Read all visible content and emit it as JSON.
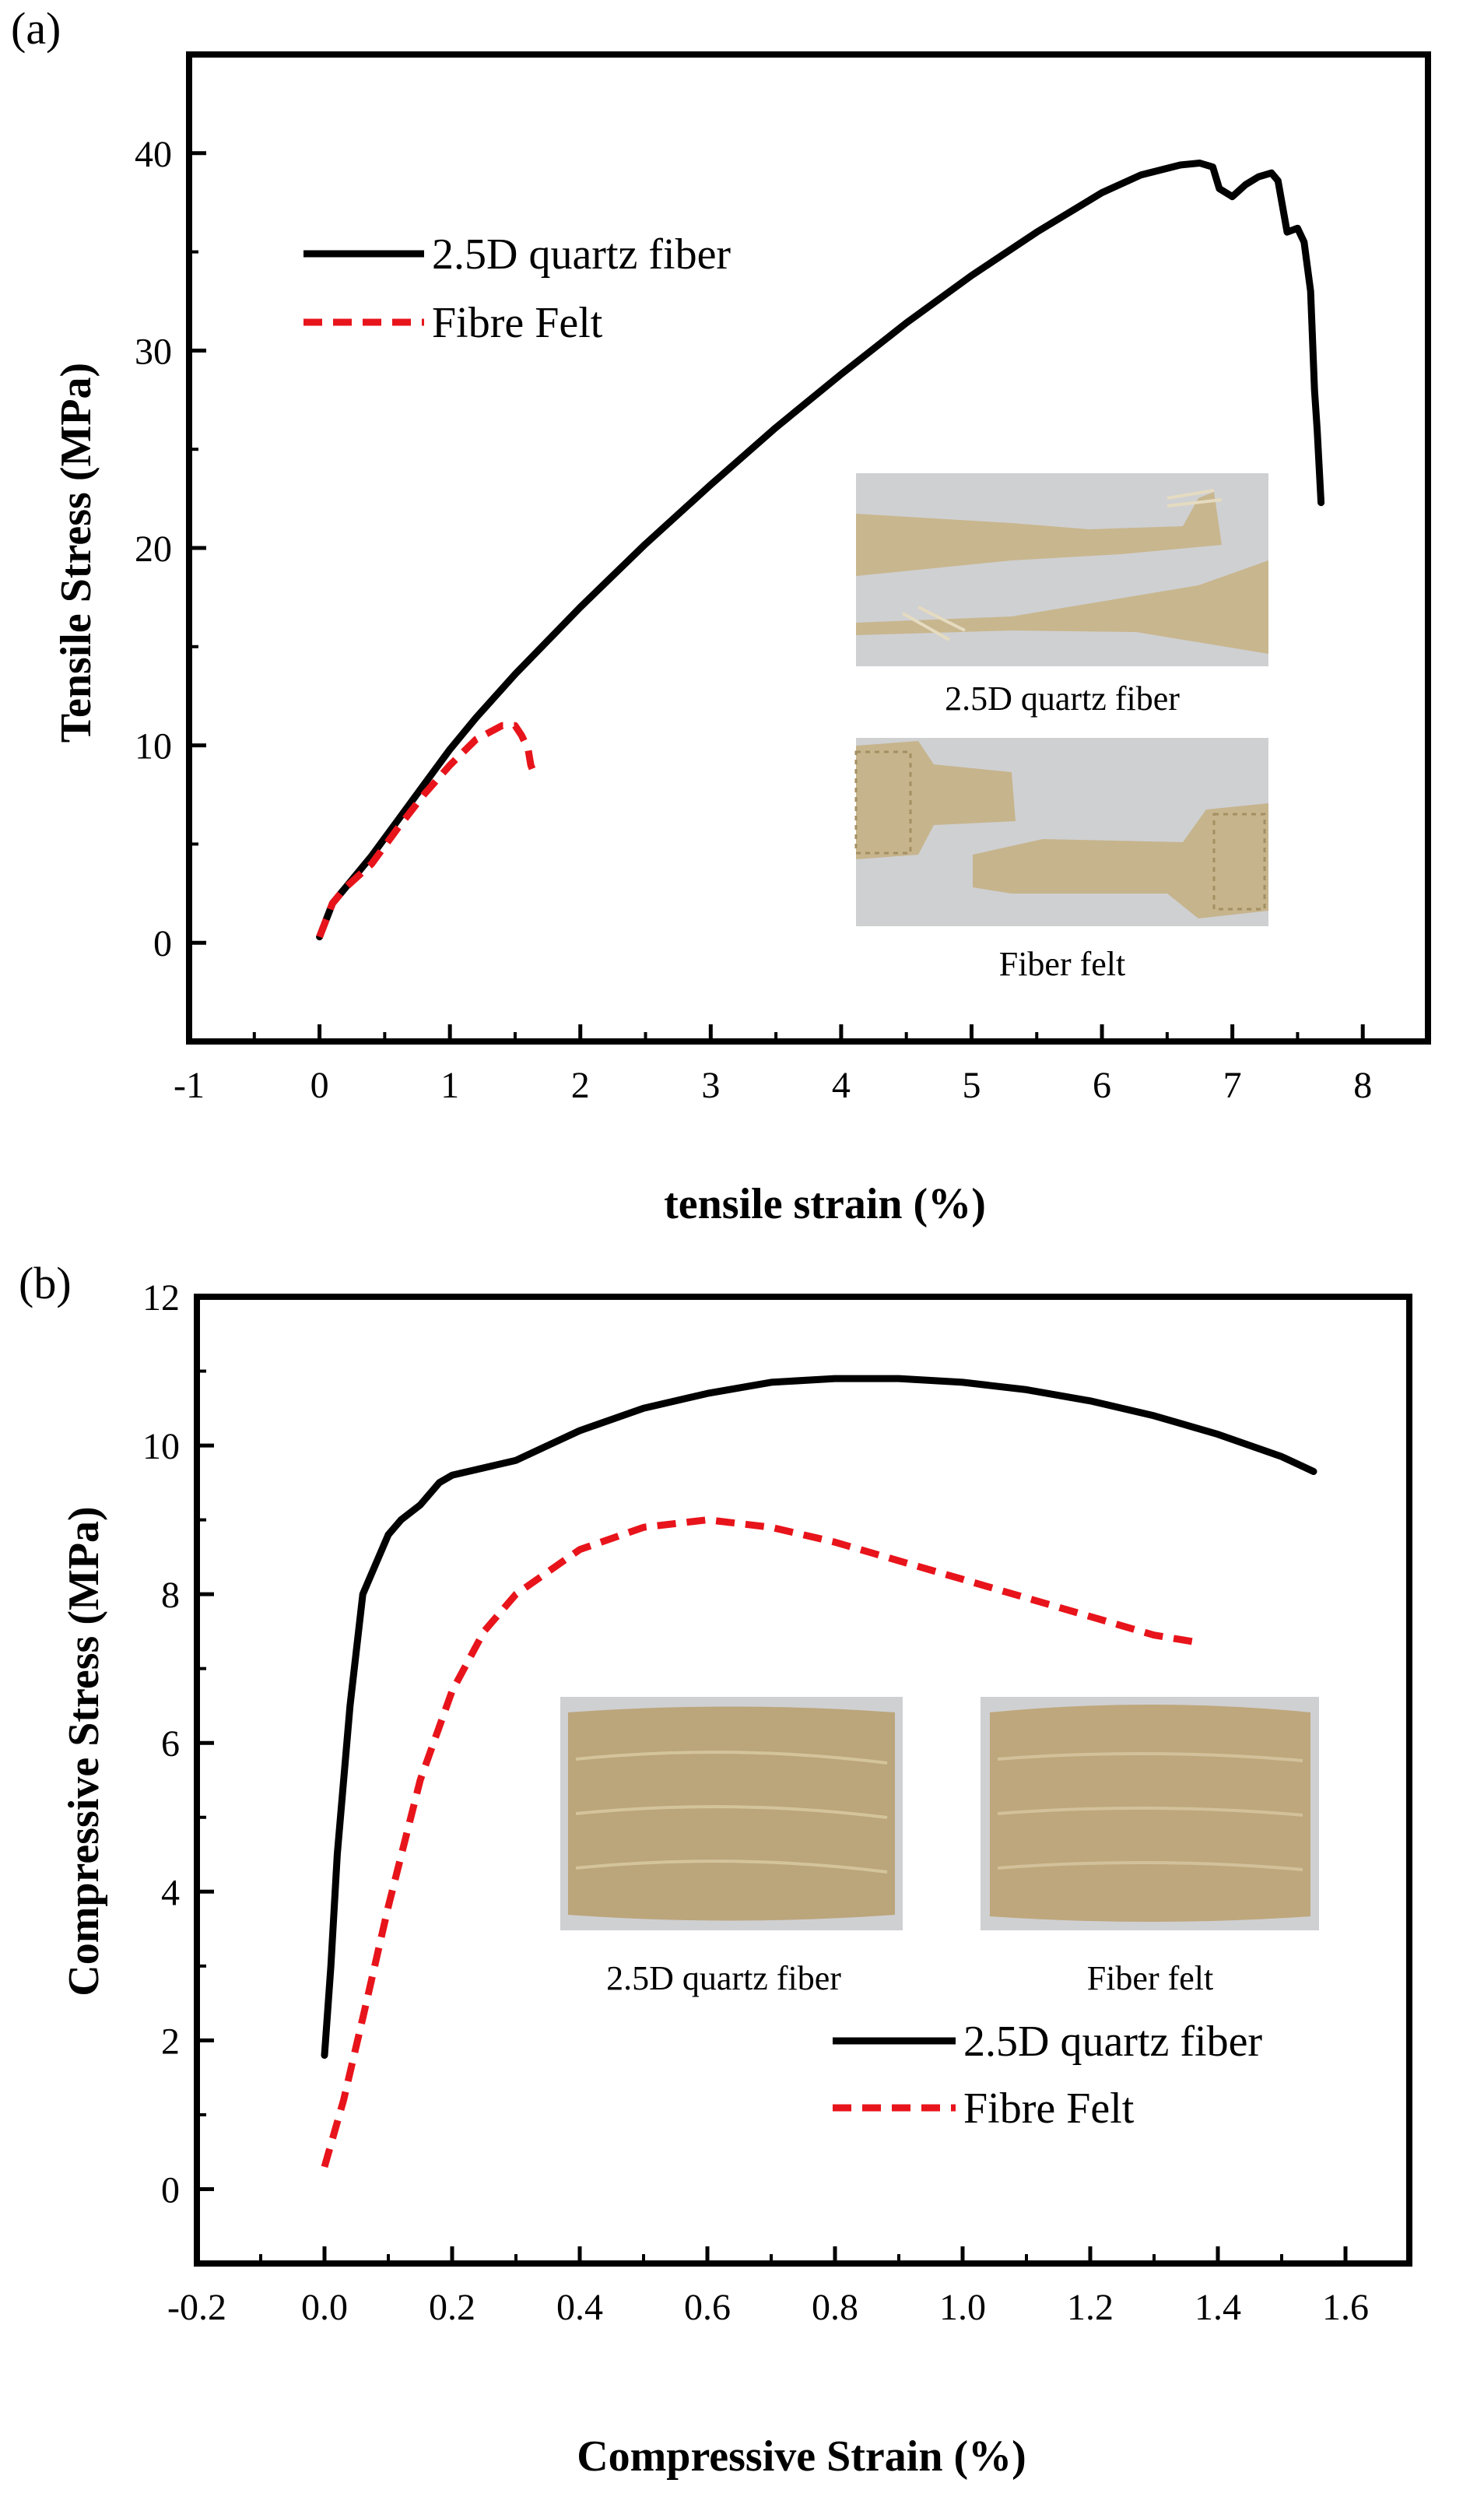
{
  "colors": {
    "series_solid": "#000000",
    "series_dashed": "#e8141b",
    "photo_bg": "#cfd0d2",
    "photo_sample": "#c6b48c",
    "photo_cyl": "#bba57b"
  },
  "chart_data": [
    {
      "panel": "(a)",
      "type": "line",
      "xlabel": "tensile strain (%)",
      "ylabel": "Tensile Stress (MPa)",
      "xlim": [
        -1,
        8.5
      ],
      "ylim": [
        -5,
        45
      ],
      "xticks": [
        "-1",
        "0",
        "1",
        "2",
        "3",
        "4",
        "5",
        "6",
        "7",
        "8"
      ],
      "yticks": [
        "0",
        "10",
        "20",
        "30",
        "40"
      ],
      "legend_position": "upper-left",
      "grid": false,
      "series": [
        {
          "name": "2.5D quartz fiber",
          "style": "solid",
          "x": [
            0,
            0.1,
            0.2,
            0.4,
            0.6,
            0.8,
            1.0,
            1.2,
            1.5,
            2.0,
            2.5,
            3.0,
            3.5,
            4.0,
            4.5,
            5.0,
            5.5,
            6.0,
            6.3,
            6.6,
            6.75,
            6.85,
            6.9,
            7.0,
            7.1,
            7.2,
            7.3,
            7.35,
            7.42,
            7.5,
            7.55,
            7.6,
            7.63,
            7.65,
            7.68
          ],
          "y": [
            0.3,
            2.0,
            2.8,
            4.4,
            6.2,
            8.0,
            9.8,
            11.4,
            13.6,
            17.0,
            20.2,
            23.2,
            26.1,
            28.8,
            31.4,
            33.8,
            36.0,
            38.0,
            38.9,
            39.4,
            39.5,
            39.3,
            38.2,
            37.8,
            38.4,
            38.8,
            39.0,
            38.6,
            36.0,
            36.2,
            35.5,
            33.0,
            28.0,
            26.0,
            22.3
          ]
        },
        {
          "name": "Fibre Felt",
          "style": "dashed",
          "x": [
            0,
            0.1,
            0.2,
            0.4,
            0.6,
            0.8,
            1.0,
            1.2,
            1.4,
            1.5,
            1.55,
            1.6,
            1.62,
            1.65
          ],
          "y": [
            0.3,
            2.0,
            2.8,
            4.0,
            5.8,
            7.5,
            9.0,
            10.3,
            11.0,
            11.0,
            10.5,
            9.8,
            9.0,
            8.5
          ]
        }
      ],
      "inset_captions": [
        "2.5D quartz fiber",
        "Fiber felt"
      ]
    },
    {
      "panel": "(b)",
      "type": "line",
      "xlabel": "Compressive Strain (%)",
      "ylabel": "Compressive Stress (MPa)",
      "xlim": [
        -0.2,
        1.7
      ],
      "ylim": [
        -1,
        12
      ],
      "xticks": [
        "-0.2",
        "0.0",
        "0.2",
        "0.4",
        "0.6",
        "0.8",
        "1.0",
        "1.2",
        "1.4",
        "1.6"
      ],
      "yticks": [
        "0",
        "2",
        "4",
        "6",
        "8",
        "10",
        "12"
      ],
      "legend_position": "lower-right",
      "grid": false,
      "series": [
        {
          "name": "2.5D quartz fiber",
          "style": "solid",
          "x": [
            0.0,
            0.01,
            0.02,
            0.04,
            0.06,
            0.08,
            0.1,
            0.12,
            0.15,
            0.18,
            0.2,
            0.25,
            0.3,
            0.35,
            0.4,
            0.5,
            0.6,
            0.7,
            0.8,
            0.9,
            1.0,
            1.1,
            1.2,
            1.3,
            1.4,
            1.5,
            1.55
          ],
          "y": [
            1.8,
            3.0,
            4.5,
            6.5,
            8.0,
            8.4,
            8.8,
            9.0,
            9.2,
            9.5,
            9.6,
            9.7,
            9.8,
            10.0,
            10.2,
            10.5,
            10.7,
            10.85,
            10.9,
            10.9,
            10.85,
            10.75,
            10.6,
            10.4,
            10.15,
            9.85,
            9.65
          ]
        },
        {
          "name": "Fibre Felt",
          "style": "dashed",
          "x": [
            0.0,
            0.03,
            0.06,
            0.1,
            0.15,
            0.2,
            0.25,
            0.3,
            0.4,
            0.5,
            0.6,
            0.7,
            0.8,
            0.9,
            1.0,
            1.1,
            1.2,
            1.3,
            1.37
          ],
          "y": [
            0.3,
            1.2,
            2.3,
            3.8,
            5.5,
            6.7,
            7.5,
            8.0,
            8.6,
            8.9,
            9.0,
            8.9,
            8.7,
            8.45,
            8.2,
            7.95,
            7.7,
            7.45,
            7.35
          ]
        }
      ],
      "inset_captions": [
        "2.5D quartz fiber",
        "Fiber felt"
      ]
    }
  ]
}
